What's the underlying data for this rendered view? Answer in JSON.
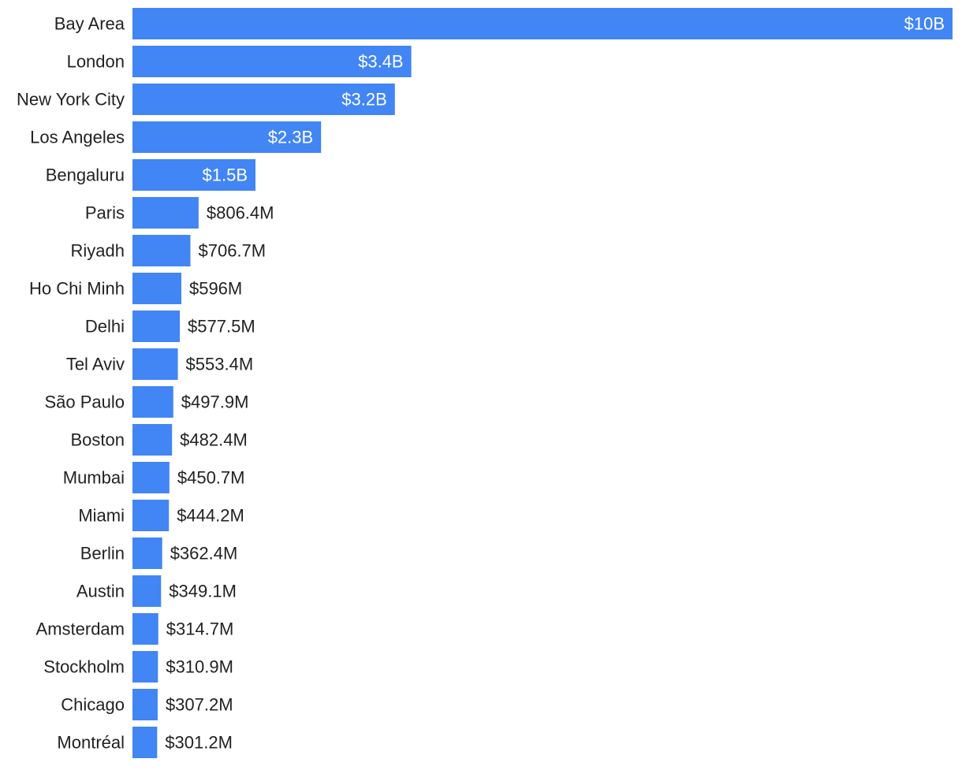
{
  "chart_data": {
    "type": "bar",
    "orientation": "horizontal",
    "categories": [
      "Bay Area",
      "London",
      "New York City",
      "Los Angeles",
      "Bengaluru",
      "Paris",
      "Riyadh",
      "Ho Chi Minh",
      "Delhi",
      "Tel Aviv",
      "São Paulo",
      "Boston",
      "Mumbai",
      "Miami",
      "Berlin",
      "Austin",
      "Amsterdam",
      "Stockholm",
      "Chicago",
      "Montréal"
    ],
    "values": [
      10000,
      3400,
      3200,
      2300,
      1500,
      806.4,
      706.7,
      596,
      577.5,
      553.4,
      497.9,
      482.4,
      450.7,
      444.2,
      362.4,
      349.1,
      314.7,
      310.9,
      307.2,
      301.2
    ],
    "value_unit": "$M",
    "labels": [
      "$10B",
      "$3.4B",
      "$3.2B",
      "$2.3B",
      "$1.5B",
      "$806.4M",
      "$706.7M",
      "$596M",
      "$577.5M",
      "$553.4M",
      "$497.9M",
      "$482.4M",
      "$450.7M",
      "$444.2M",
      "$362.4M",
      "$349.1M",
      "$314.7M",
      "$310.9M",
      "$307.2M",
      "$301.2M"
    ],
    "xlim": [
      0,
      10000
    ],
    "bar_color": "#4285f4",
    "label_inside_color": "#ffffff",
    "label_outside_color": "#222222",
    "category_label_color": "#222222",
    "grid": false,
    "legend": "none"
  }
}
